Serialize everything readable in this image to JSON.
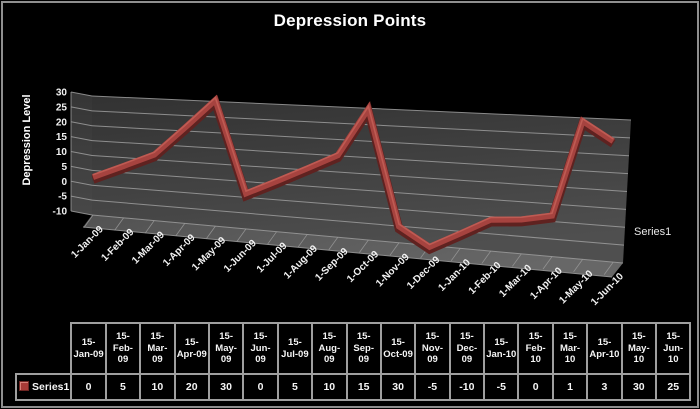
{
  "chart": {
    "title": "Depression Points",
    "y_axis_label": "Depression Level",
    "series_axis_label": "Series1"
  },
  "chart_data": {
    "type": "line",
    "style": "3d-ribbon-line",
    "title": "Depression Points",
    "xlabel": "",
    "ylabel": "Depression Level",
    "ylim": [
      -10,
      30
    ],
    "grid": true,
    "legend_position": "right",
    "y_ticks": [
      30,
      25,
      20,
      15,
      10,
      5,
      0,
      -5,
      -10
    ],
    "x_axis_tick_labels": [
      "1-Jan-09",
      "1-Feb-09",
      "1-Mar-09",
      "1-Apr-09",
      "1-May-09",
      "1-Jun-09",
      "1-Jul-09",
      "1-Aug-09",
      "1-Sep-09",
      "1-Oct-09",
      "1-Nov-09",
      "1-Dec-09",
      "1-Jan-10",
      "1-Feb-10",
      "1-Mar-10",
      "1-Apr-10",
      "1-May-10",
      "1-Jun-10"
    ],
    "categories": [
      "15-Jan-09",
      "15-Feb-09",
      "15-Mar-09",
      "15-Apr-09",
      "15-May-09",
      "15-Jun-09",
      "15-Jul-09",
      "15-Aug-09",
      "15-Sep-09",
      "15-Oct-09",
      "15-Nov-09",
      "15-Dec-09",
      "15-Jan-10",
      "15-Feb-10",
      "15-Mar-10",
      "15-Apr-10",
      "15-May-10",
      "15-Jun-10"
    ],
    "series": [
      {
        "name": "Series1",
        "values": [
          0,
          5,
          10,
          20,
          30,
          0,
          5,
          10,
          15,
          30,
          -5,
          -10,
          -5,
          0,
          1,
          3,
          30,
          25
        ]
      }
    ],
    "colors": {
      "background": "#000000",
      "line": "#a6433f",
      "line_shadow": "#5f2220",
      "line_highlight": "#c35f57",
      "wall_dark": "#323232",
      "wall_light": "#4f4f4f",
      "side_wall": "#3d3d3d",
      "floor": "#5a5a5a",
      "gridline": "#9d9d9d",
      "text": "#f2f2f2"
    }
  },
  "data_table": {
    "row_label": "Series1",
    "columns": [
      "15-Jan-09",
      "15-Feb-09",
      "15-Mar-09",
      "15-Apr-09",
      "15-May-09",
      "15-Jun-09",
      "15-Jul-09",
      "15-Aug-09",
      "15-Sep-09",
      "15-Oct-09",
      "15-Nov-09",
      "15-Dec-09",
      "15-Jan-10",
      "15-Feb-10",
      "15-Mar-10",
      "15-Apr-10",
      "15-May-10",
      "15-Jun-10"
    ],
    "values": [
      "0",
      "5",
      "10",
      "20",
      "30",
      "0",
      "5",
      "10",
      "15",
      "30",
      "-5",
      "-10",
      "-5",
      "0",
      "1",
      "3",
      "30",
      "25"
    ]
  }
}
